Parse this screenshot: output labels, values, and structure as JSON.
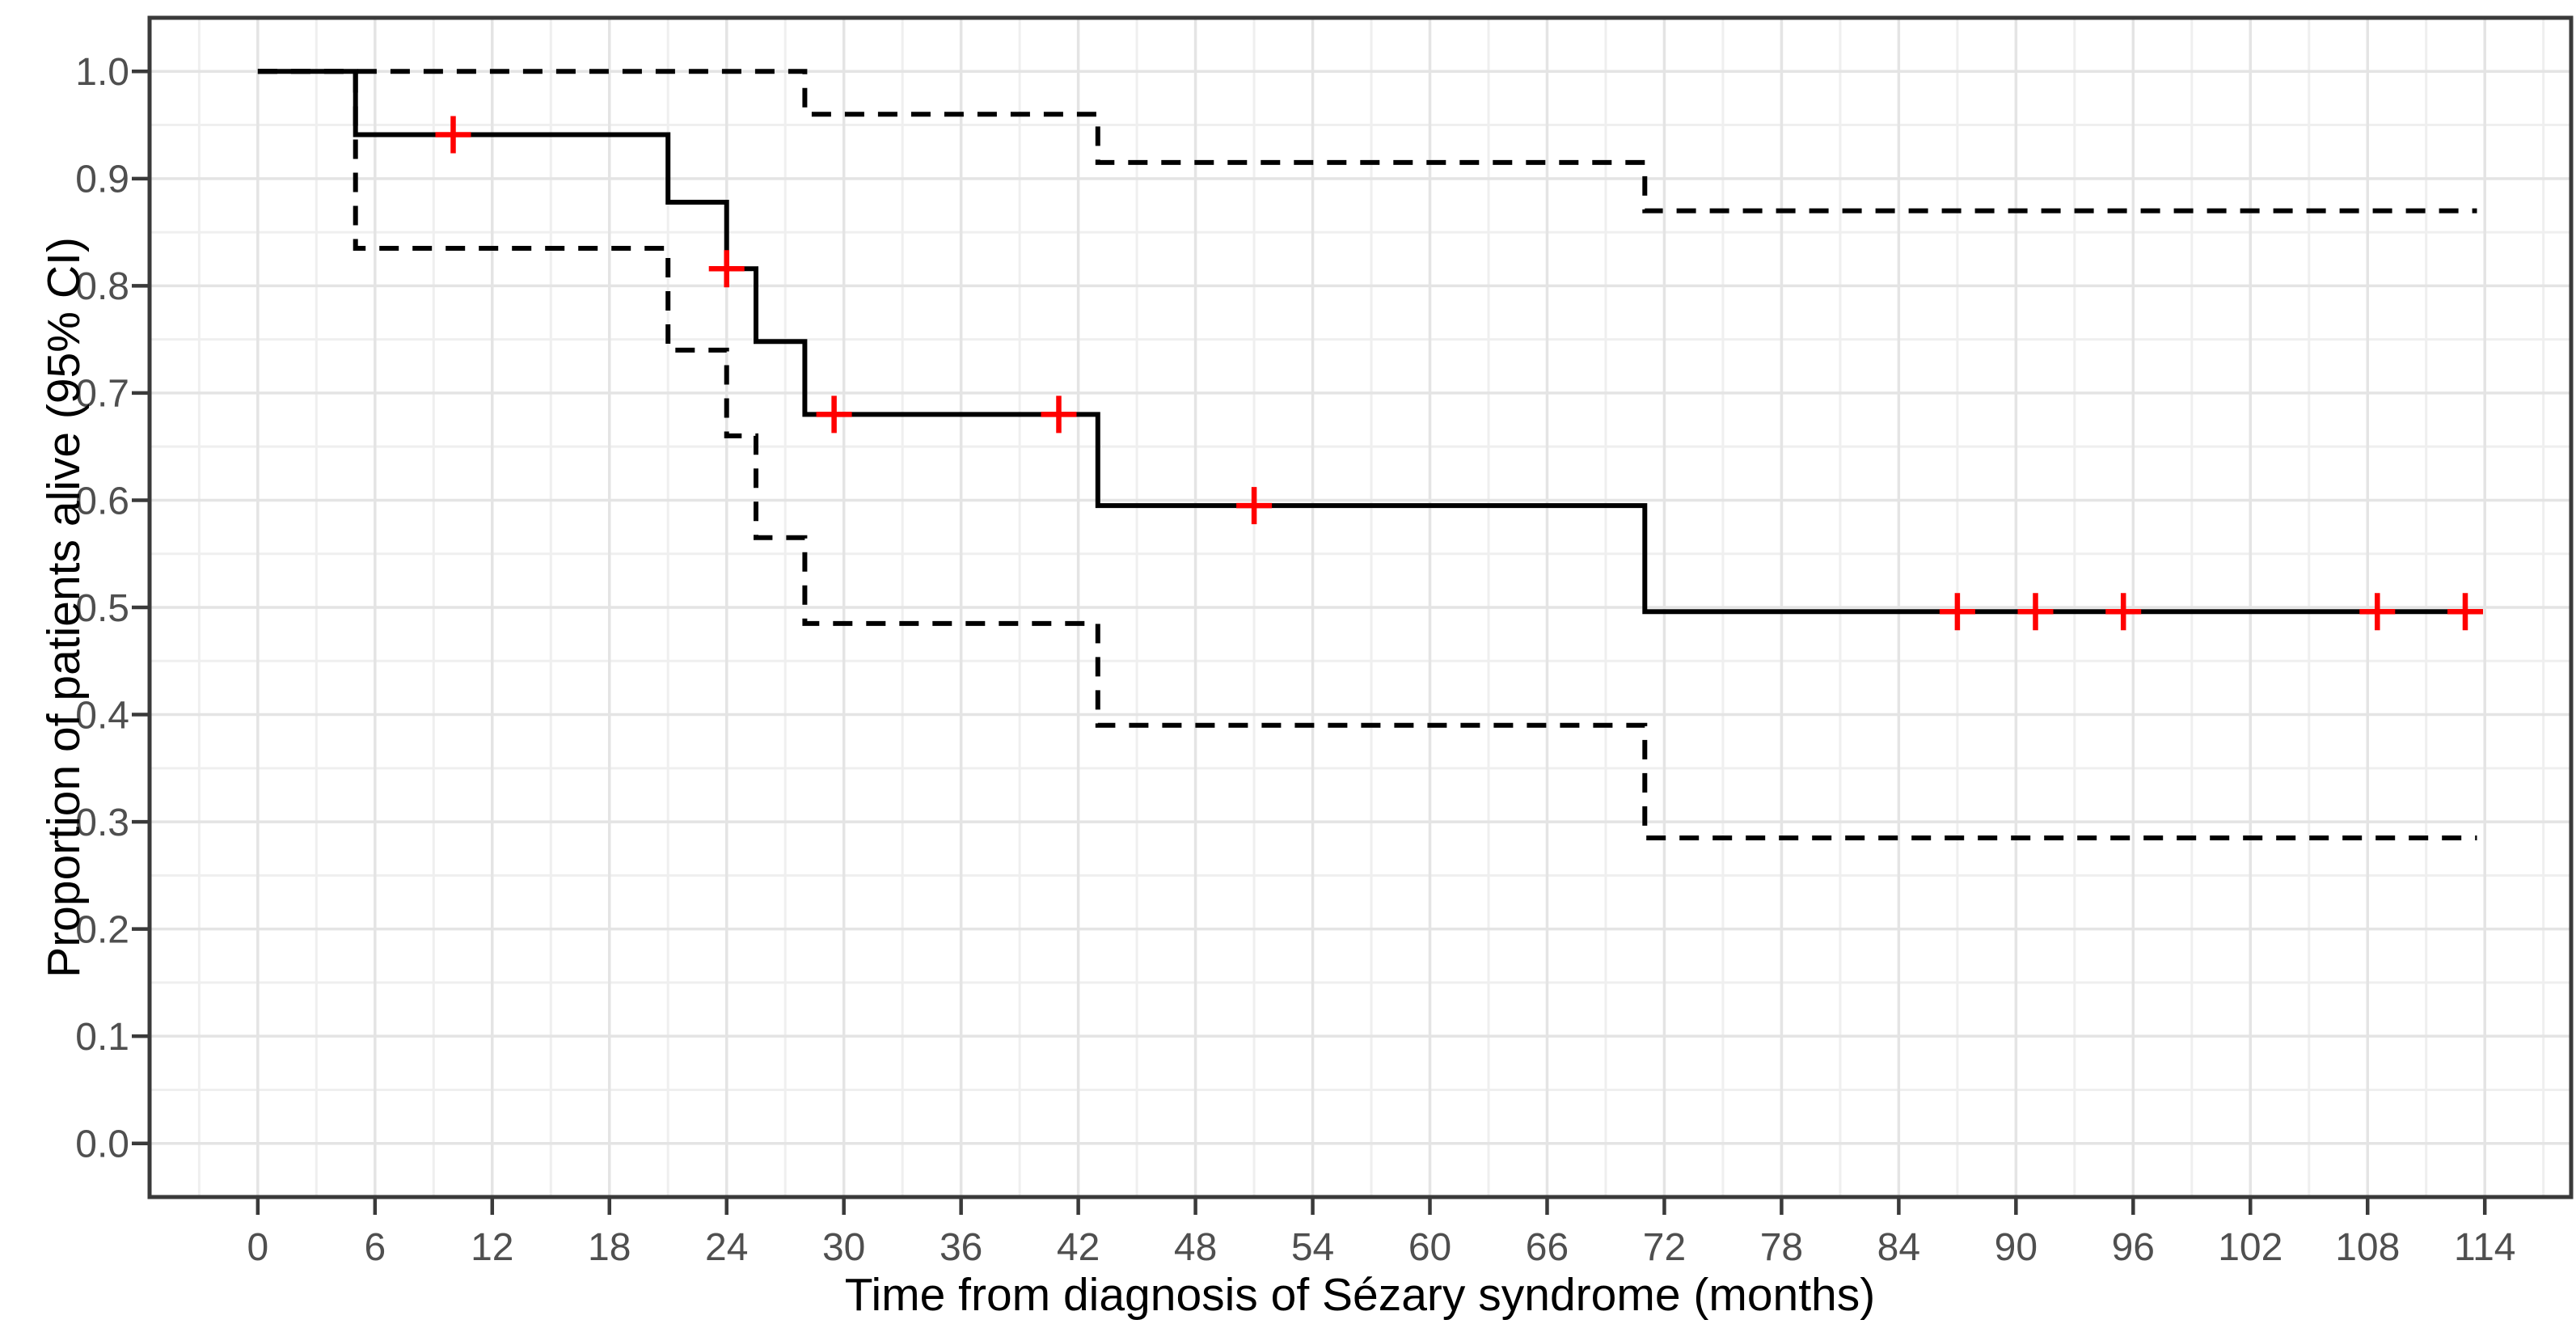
{
  "chart_data": {
    "type": "line",
    "variant": "kaplan-meier-step-with-95ci",
    "title": "",
    "xlabel": "Time from diagnosis of Sézary syndrome (months)",
    "ylabel": "Proportion of patients alive (95% CI)",
    "xlim": [
      -5.54,
      118.42
    ],
    "ylim": [
      -0.05,
      1.05
    ],
    "x_major_ticks": [
      0,
      6,
      12,
      18,
      24,
      30,
      36,
      42,
      48,
      54,
      60,
      66,
      72,
      78,
      84,
      90,
      96,
      102,
      108,
      114
    ],
    "x_minor_ticks": [
      -3,
      3,
      9,
      15,
      21,
      27,
      33,
      39,
      45,
      51,
      57,
      63,
      69,
      75,
      81,
      87,
      93,
      99,
      105,
      111,
      117
    ],
    "y_major_ticks": [
      0,
      0.1,
      0.2,
      0.3,
      0.4,
      0.5,
      0.6,
      0.7,
      0.8,
      0.9,
      1
    ],
    "y_tick_labels": [
      "0.0",
      "0.1",
      "0.2",
      "0.3",
      "0.4",
      "0.5",
      "0.6",
      "0.7",
      "0.8",
      "0.9",
      "1.0"
    ],
    "y_minor_ticks": [
      0.05,
      0.15,
      0.25,
      0.35,
      0.45,
      0.55,
      0.65,
      0.75,
      0.85,
      0.95
    ],
    "grid": {
      "major": true,
      "minor": true
    },
    "legend": "none",
    "end_time": 113.6,
    "series": [
      {
        "name": "survival-estimate",
        "line_style": "solid",
        "color": "#000000",
        "step_times": [
          0,
          5,
          21,
          24,
          25.5,
          28,
          43,
          71
        ],
        "step_values": [
          1.0,
          0.941,
          0.878,
          0.816,
          0.748,
          0.68,
          0.595,
          0.496
        ]
      },
      {
        "name": "upper-95-ci",
        "line_style": "dashed",
        "color": "#000000",
        "step_times": [
          0,
          28,
          43,
          71
        ],
        "step_values": [
          1.0,
          0.96,
          0.915,
          0.87
        ]
      },
      {
        "name": "lower-95-ci",
        "line_style": "dashed",
        "color": "#000000",
        "step_times": [
          0,
          5,
          21,
          24,
          25.5,
          28,
          43,
          71
        ],
        "step_values": [
          1.0,
          0.835,
          0.74,
          0.66,
          0.565,
          0.485,
          0.39,
          0.285
        ]
      }
    ],
    "censor_marks": {
      "symbol": "plus",
      "color": "#FF0000",
      "points": [
        [
          10,
          0.941
        ],
        [
          24,
          0.816
        ],
        [
          29.5,
          0.68
        ],
        [
          41,
          0.68
        ],
        [
          51,
          0.595
        ],
        [
          87,
          0.496
        ],
        [
          91,
          0.496
        ],
        [
          95.5,
          0.496
        ],
        [
          108.5,
          0.496
        ],
        [
          113,
          0.496
        ]
      ]
    }
  },
  "theme": {
    "background": "#FFFFFF",
    "panel_background": "#FFFFFF",
    "panel_border": "#3A3A3A",
    "grid_major": "#E4E4E4",
    "grid_minor": "#EFEFEF",
    "tick_color": "#3A3A3A",
    "tick_label_color": "#4F4F4F",
    "axis_title_color": "#000000",
    "curve_color": "#000000",
    "censor_color": "#FF0000"
  }
}
